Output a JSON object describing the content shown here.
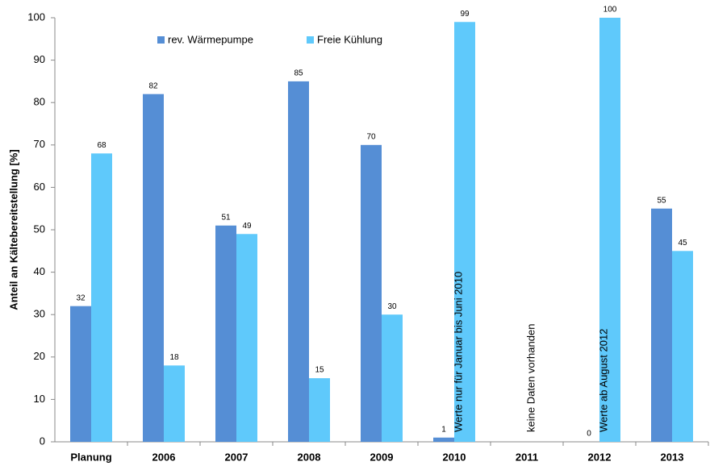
{
  "chart_data": {
    "type": "bar",
    "y_label": "Anteil an Kältebereitstellung [%]",
    "categories": [
      "Planung",
      "2006",
      "2007",
      "2008",
      "2009",
      "2010",
      "2011",
      "2012",
      "2013"
    ],
    "series": [
      {
        "name": "rev. Wärmepumpe",
        "color": "#558ed5",
        "values": [
          32,
          82,
          51,
          85,
          70,
          1,
          null,
          0,
          55
        ]
      },
      {
        "name": "Freie Kühlung",
        "color": "#5fc9fb",
        "values": [
          68,
          18,
          49,
          15,
          30,
          99,
          null,
          100,
          45
        ]
      }
    ],
    "annotations": [
      {
        "category": "2010",
        "text": "Werte nur für Januar bis Juni 2010"
      },
      {
        "category": "2011",
        "text": "keine Daten vorhanden"
      },
      {
        "category": "2012",
        "text": "Werte ab August 2012"
      }
    ],
    "ylim": [
      0,
      100
    ],
    "yticks": [
      0,
      10,
      20,
      30,
      40,
      50,
      60,
      70,
      80,
      90,
      100
    ],
    "grid": false,
    "legend": "top"
  }
}
